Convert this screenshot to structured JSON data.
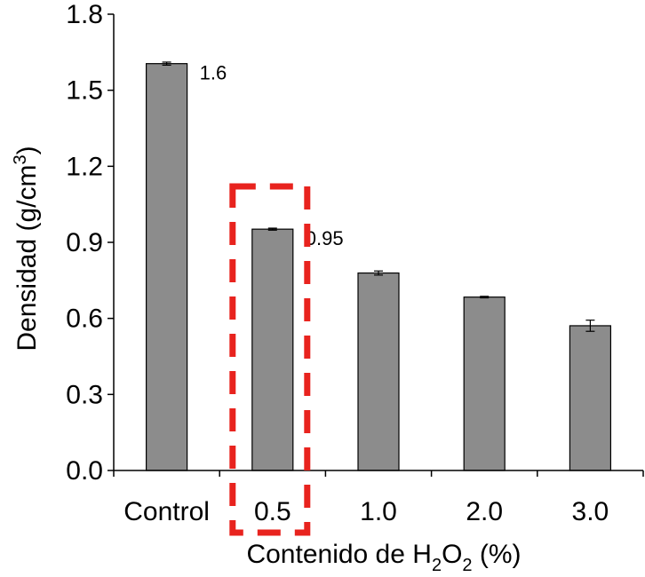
{
  "chart_data": {
    "type": "bar",
    "categories": [
      "Control",
      "0.5",
      "1.0",
      "2.0",
      "3.0"
    ],
    "values": [
      1.605,
      0.952,
      0.779,
      0.684,
      0.571
    ],
    "errors": [
      0.006,
      0.004,
      0.008,
      0.003,
      0.022
    ],
    "ylim": [
      0,
      1.8
    ],
    "yticks": [
      "0.0",
      "0.3",
      "0.6",
      "0.9",
      "1.2",
      "1.5",
      "1.8"
    ],
    "ylabel": {
      "main": "Densidad (g/cm",
      "sup": "3",
      "end": ")"
    },
    "xlabel": {
      "a": "Contenido de H",
      "sub1": "2",
      "b": "O",
      "sub2": "2",
      "c": " (%)"
    },
    "data_labels": [
      {
        "index": 0,
        "text": "1.6"
      },
      {
        "index": 1,
        "text": "0.95"
      }
    ],
    "highlight": {
      "index": 1,
      "style": "dashed-box"
    },
    "grid": false,
    "legend": "none",
    "colors": {
      "bar": "#8c8c8c",
      "bar_edge": "#000000",
      "axis": "#000000",
      "highlight": "#e8231e"
    }
  }
}
